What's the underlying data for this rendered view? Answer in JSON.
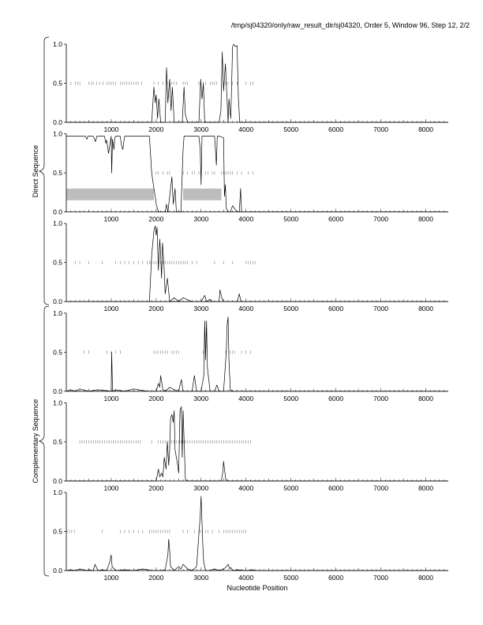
{
  "title": "/tmp/sj04320/only/raw_result_dir/sj04320, Order 5, Window 96, Step 12, 2/2",
  "xlabel": "Nucleotide Position",
  "group_labels": [
    "Direct Sequence",
    "Complementary Sequence"
  ],
  "chart_data": {
    "type": "line",
    "title": "/tmp/sj04320/only/raw_result_dir/sj04320, Order 5, Window 96, Step 12, 2/2",
    "xlabel": "Nucleotide Position",
    "xlim": [
      0,
      8500
    ],
    "ylim": [
      0,
      1
    ],
    "x_ticks": [
      1000,
      2000,
      3000,
      4000,
      5000,
      6000,
      7000,
      8000
    ],
    "x_tick_labels": [
      "1000",
      "2000",
      "3000",
      "4000",
      "5000",
      "6000",
      "7000",
      "8000"
    ],
    "y_ticks": [
      0,
      0.5,
      1
    ],
    "y_tick_labels": [
      "0.0",
      "0.5",
      "1.0"
    ],
    "grid": false,
    "panels": [
      {
        "group": "Direct Sequence",
        "x": [
          0,
          1900,
          1950,
          1980,
          2000,
          2030,
          2060,
          2100,
          2200,
          2230,
          2260,
          2300,
          2330,
          2360,
          2400,
          2500,
          2580,
          2620,
          2650,
          2700,
          2950,
          2990,
          3020,
          3050,
          3080,
          3200,
          3400,
          3440,
          3470,
          3500,
          3540,
          3600,
          3620,
          3660,
          3700,
          3730,
          3760,
          3800,
          3830,
          3860,
          8500
        ],
        "y": [
          0,
          0,
          0.45,
          0.25,
          0.35,
          0.05,
          0.3,
          0,
          0,
          0.7,
          0.25,
          0.55,
          0.15,
          0.45,
          0,
          0,
          0,
          0.45,
          0.1,
          0,
          0,
          0.55,
          0.3,
          0.5,
          0,
          0,
          0,
          0.15,
          0.9,
          0.4,
          0.75,
          0,
          0.3,
          0.05,
          0.97,
          1.0,
          0.97,
          0.98,
          0.3,
          0,
          0
        ],
        "ticks": [
          100,
          200,
          250,
          300,
          500,
          560,
          600,
          680,
          750,
          820,
          900,
          950,
          1000,
          1050,
          1100,
          1200,
          1250,
          1300,
          1350,
          1400,
          1450,
          1500,
          1550,
          1600,
          1680,
          1950,
          2050,
          2150,
          2250,
          2300,
          2350,
          2400,
          2450,
          2600,
          2650,
          2700,
          2950,
          3050,
          3100,
          3200,
          3250,
          3300,
          3350,
          3500,
          3550,
          3600,
          3700,
          3800,
          4000,
          4100,
          4150
        ],
        "shaded": []
      },
      {
        "group": "Direct Sequence",
        "x": [
          0,
          420,
          460,
          480,
          600,
          650,
          680,
          850,
          880,
          900,
          940,
          1000,
          1010,
          1030,
          1060,
          1080,
          1100,
          1200,
          1230,
          1260,
          1280,
          1300,
          1400,
          1700,
          1800,
          1850,
          1900,
          1950,
          1980,
          2000,
          2050,
          2100,
          2200,
          2230,
          2260,
          2300,
          2350,
          2380,
          2420,
          2450,
          2500,
          2550,
          2600,
          2620,
          2650,
          2700,
          2800,
          2900,
          2950,
          2980,
          3000,
          3020,
          3040,
          3060,
          3100,
          3200,
          3300,
          3340,
          3360,
          3380,
          3400,
          3500,
          3520,
          3540,
          3560,
          3600,
          3650,
          3700,
          3800,
          3850,
          3880,
          3900,
          8500
        ],
        "y": [
          0.97,
          0.97,
          0.93,
          0.97,
          0.97,
          0.9,
          0.97,
          0.97,
          0.88,
          0.92,
          0.75,
          0.97,
          0.5,
          0.93,
          0.8,
          0.95,
          0.97,
          0.97,
          0.85,
          0.8,
          0.9,
          0.97,
          0.97,
          0.97,
          0.97,
          0.97,
          0.5,
          0.3,
          0.2,
          0.1,
          0,
          0,
          0,
          0.1,
          0,
          0.2,
          0.45,
          0.1,
          0.3,
          0,
          0,
          0,
          0.8,
          0.97,
          0.97,
          0.97,
          0.97,
          0.97,
          0.97,
          0.8,
          0.35,
          0.97,
          0.97,
          0.97,
          0.97,
          0.97,
          0.97,
          0.6,
          0.97,
          0.97,
          0.97,
          0.95,
          0.2,
          0.35,
          0.05,
          0,
          0,
          0.08,
          0,
          0,
          0.3,
          0,
          0
        ],
        "ticks": [
          2000,
          2050,
          2150,
          2250,
          2300,
          2600,
          2700,
          2800,
          2850,
          2950,
          3000,
          3100,
          3150,
          3250,
          3300,
          3450,
          3500,
          3550,
          3600,
          3650,
          3700,
          3800,
          3900,
          4050,
          4150
        ],
        "shaded": [
          [
            0,
            1950
          ],
          [
            2600,
            3450
          ]
        ]
      },
      {
        "group": "Direct Sequence",
        "x": [
          0,
          1850,
          1900,
          1950,
          1980,
          2000,
          2020,
          2050,
          2080,
          2100,
          2120,
          2140,
          2170,
          2200,
          2250,
          2300,
          2400,
          2500,
          2600,
          2800,
          3000,
          3080,
          3120,
          3200,
          3250,
          3400,
          3420,
          3460,
          3500,
          3800,
          3850,
          3880,
          3900,
          4000,
          8500
        ],
        "y": [
          0,
          0,
          0.6,
          0.9,
          0.97,
          0.85,
          0.95,
          0.4,
          0.8,
          0.6,
          0.3,
          0.75,
          0.5,
          0.1,
          0.3,
          0,
          0.05,
          0,
          0.05,
          0,
          0,
          0.08,
          0,
          0.03,
          0,
          0,
          0.15,
          0.05,
          0,
          0,
          0.1,
          0.02,
          0,
          0,
          0
        ],
        "ticks": [
          200,
          300,
          500,
          800,
          1100,
          1200,
          1300,
          1400,
          1500,
          1600,
          1700,
          1800,
          1850,
          1900,
          1950,
          2000,
          2050,
          2100,
          2150,
          2200,
          2250,
          2300,
          2350,
          2400,
          2450,
          2500,
          2550,
          2600,
          2650,
          2700,
          2800,
          2900,
          3300,
          3500,
          3700,
          4000,
          4050,
          4100,
          4150,
          4200
        ],
        "shaded": []
      },
      {
        "group": "Complementary Sequence",
        "x": [
          0,
          100,
          200,
          300,
          500,
          700,
          1000,
          1010,
          1030,
          1100,
          1300,
          1500,
          1800,
          2000,
          2050,
          2080,
          2100,
          2150,
          2200,
          2300,
          2400,
          2500,
          2560,
          2600,
          2800,
          2850,
          2900,
          3000,
          3060,
          3080,
          3100,
          3120,
          3140,
          3200,
          3300,
          3350,
          3400,
          3500,
          3560,
          3580,
          3600,
          3620,
          3650,
          3700,
          3800,
          8500
        ],
        "y": [
          0,
          0.02,
          0,
          0.03,
          0,
          0.02,
          0,
          0.5,
          0,
          0.02,
          0,
          0.03,
          0,
          0,
          0.1,
          0.05,
          0.2,
          0.02,
          0,
          0.05,
          0.02,
          0,
          0.15,
          0,
          0,
          0.2,
          0,
          0,
          0.2,
          0.9,
          0.4,
          0.9,
          0.3,
          0,
          0,
          0.08,
          0,
          0,
          0.5,
          0.85,
          0.95,
          0.4,
          0.02,
          0,
          0,
          0
        ],
        "ticks": [
          400,
          500,
          900,
          1000,
          1100,
          1200,
          1950,
          2000,
          2050,
          2100,
          2150,
          2200,
          2250,
          2350,
          2400,
          2450,
          2500,
          3050,
          3100,
          3550,
          3650,
          3700,
          3750,
          3900,
          4000,
          4100
        ],
        "shaded": []
      },
      {
        "group": "Complementary Sequence",
        "x": [
          0,
          1900,
          2000,
          2050,
          2080,
          2120,
          2150,
          2180,
          2220,
          2250,
          2280,
          2300,
          2320,
          2350,
          2380,
          2400,
          2420,
          2450,
          2480,
          2500,
          2530,
          2560,
          2580,
          2600,
          2650,
          2700,
          3000,
          3450,
          3480,
          3500,
          3520,
          3550,
          3600,
          8500
        ],
        "y": [
          0,
          0,
          0,
          0.15,
          0.05,
          0.1,
          0.05,
          0.3,
          0.15,
          0.5,
          0.2,
          0.4,
          0.8,
          0.85,
          0.75,
          0.9,
          0.4,
          0.3,
          0.2,
          0.1,
          0.9,
          0.95,
          0.3,
          0.9,
          0.02,
          0,
          0,
          0,
          0.1,
          0.25,
          0.15,
          0.02,
          0,
          0
        ],
        "ticks": [
          300,
          350,
          400,
          450,
          500,
          550,
          600,
          650,
          700,
          750,
          800,
          850,
          900,
          950,
          1000,
          1050,
          1100,
          1150,
          1200,
          1250,
          1300,
          1350,
          1400,
          1450,
          1500,
          1550,
          1600,
          1650,
          1900,
          2050,
          2100,
          2150,
          2200,
          2250,
          2300,
          2350,
          2400,
          2450,
          2500,
          2550,
          2600,
          2650,
          2700,
          2750,
          2800,
          2850,
          2900,
          2950,
          3000,
          3050,
          3100,
          3150,
          3200,
          3250,
          3300,
          3350,
          3400,
          3450,
          3500,
          3550,
          3600,
          3650,
          3700,
          3750,
          3800,
          3850,
          3900,
          3950,
          4000,
          4050,
          4100
        ],
        "shaded": []
      },
      {
        "group": "Complementary Sequence",
        "x": [
          0,
          100,
          200,
          300,
          450,
          500,
          600,
          640,
          680,
          700,
          800,
          900,
          960,
          980,
          1000,
          1020,
          1100,
          1300,
          1500,
          1700,
          1900,
          2100,
          2200,
          2260,
          2280,
          2300,
          2320,
          2400,
          2500,
          2550,
          2600,
          2700,
          2800,
          2900,
          2980,
          3000,
          3020,
          3040,
          3060,
          3100,
          3200,
          3300,
          3400,
          3500,
          3550,
          3600,
          3640,
          3660,
          3700,
          3800,
          4000,
          4150,
          4200,
          8500
        ],
        "y": [
          0,
          0.01,
          0,
          0.02,
          0,
          0.01,
          0,
          0.08,
          0.03,
          0,
          0.01,
          0,
          0.1,
          0.15,
          0.2,
          0.05,
          0,
          0.01,
          0,
          0.02,
          0,
          0,
          0.01,
          0.2,
          0.4,
          0.25,
          0.05,
          0,
          0.05,
          0.02,
          0.08,
          0.02,
          0,
          0.05,
          0.7,
          0.95,
          0.6,
          0.3,
          0.1,
          0,
          0,
          0.02,
          0,
          0.02,
          0.04,
          0.08,
          0.02,
          0.04,
          0,
          0.01,
          0,
          0.01,
          0,
          0
        ],
        "ticks": [
          20,
          70,
          120,
          180,
          800,
          1200,
          1300,
          1400,
          1500,
          1600,
          1700,
          1850,
          1900,
          1950,
          2000,
          2050,
          2100,
          2150,
          2200,
          2250,
          2300,
          2600,
          2700,
          2850,
          2950,
          3000,
          3100,
          3150,
          3250,
          3400,
          3500,
          3550,
          3600,
          3650,
          3700,
          3750,
          3800,
          3850,
          3900,
          3950,
          4000
        ],
        "shaded": []
      }
    ]
  }
}
